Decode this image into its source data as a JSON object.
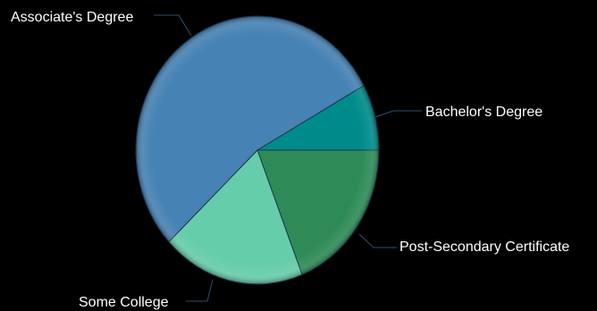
{
  "chart_data": {
    "type": "pie",
    "start_angle_deg": 0,
    "direction": "clockwise",
    "slices": [
      {
        "label": "Post-Secondary Certificate",
        "value": 19,
        "color": "#2e8b57"
      },
      {
        "label": "Some College",
        "value": 19,
        "color": "#66cdaa"
      },
      {
        "label": "Associate's Degree",
        "value": 54,
        "color": "#4682b4"
      },
      {
        "label": "Bachelor's Degree",
        "value": 8,
        "color": "#008b8b"
      }
    ]
  }
}
